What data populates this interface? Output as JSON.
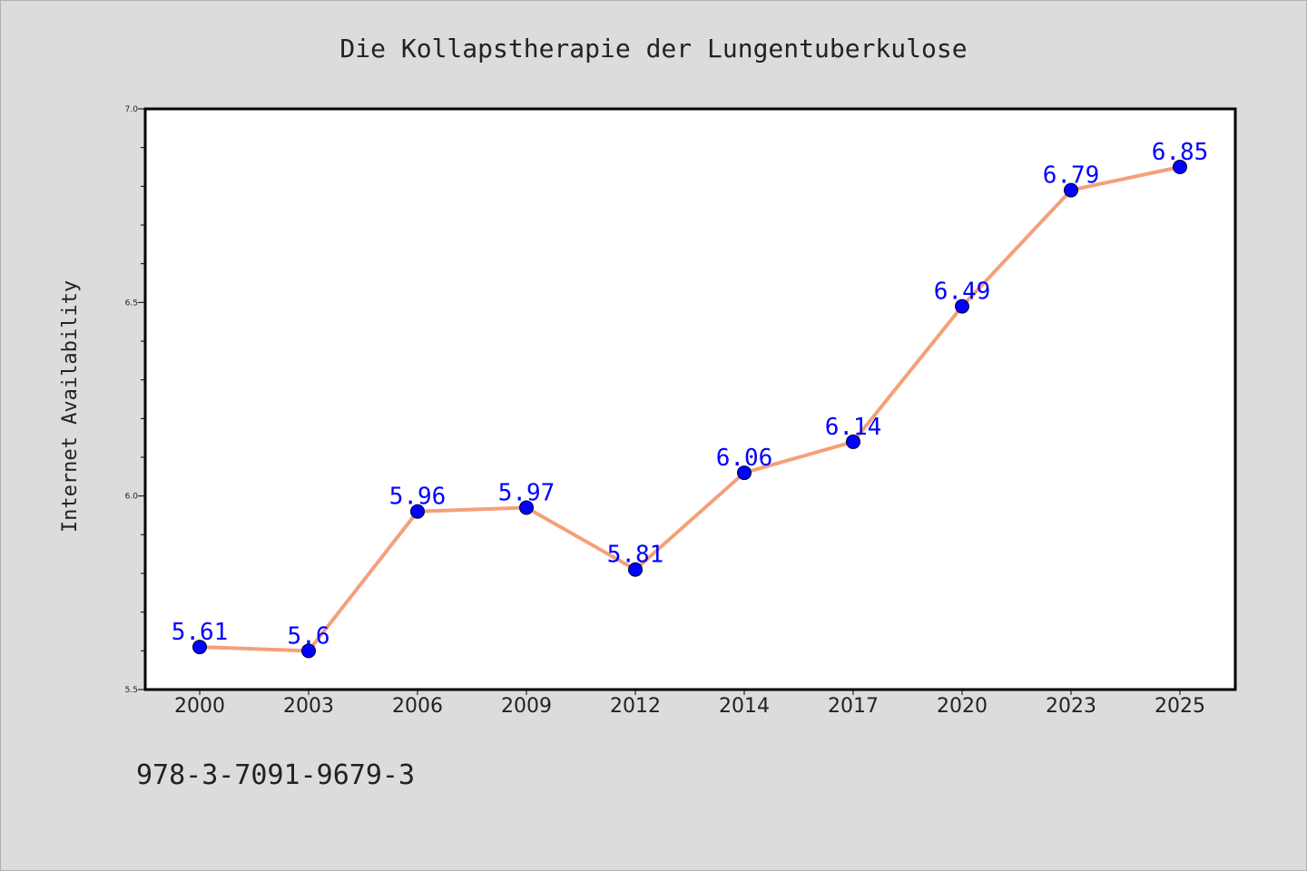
{
  "chart_data": {
    "type": "line",
    "title": "Die Kollapstherapie der Lungentuberkulose",
    "xlabel": "",
    "ylabel": "Internet Availability",
    "categories": [
      "2000",
      "2003",
      "2006",
      "2009",
      "2012",
      "2014",
      "2017",
      "2020",
      "2023",
      "2025"
    ],
    "series": [
      {
        "values": [
          5.61,
          5.6,
          5.96,
          5.97,
          5.81,
          6.06,
          6.14,
          6.49,
          6.79,
          6.85
        ],
        "labels": [
          "5.61",
          "5.6",
          "5.96",
          "5.97",
          "5.81",
          "6.06",
          "6.14",
          "6.49",
          "6.79",
          "6.85"
        ],
        "line_color": "#f4a07a",
        "marker_color": "#0000ff"
      }
    ],
    "ylim": [
      5.5,
      7.0
    ],
    "yticks": [
      "5.5",
      "6.0",
      "6.5",
      "7.0"
    ],
    "grid": false,
    "legend": "none"
  },
  "footnote": "978-3-7091-9679-3",
  "colors": {
    "background": "#dcdcdc",
    "plot_background": "#ffffff",
    "text": "#222222"
  }
}
